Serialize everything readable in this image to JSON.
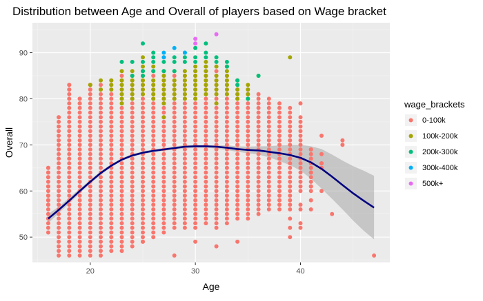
{
  "chart_data": {
    "type": "scatter",
    "title": "Distribution between Age and Overall of players based on Wage bracket",
    "xlabel": "Age",
    "ylabel": "Overall",
    "xlim": [
      14.5,
      48.5
    ],
    "ylim": [
      44.5,
      96.5
    ],
    "x_ticks": [
      20,
      30,
      40
    ],
    "y_ticks": [
      50,
      60,
      70,
      80,
      90
    ],
    "grid": true,
    "legend": {
      "title": "wage_brackets",
      "placement": "right",
      "entries": [
        {
          "label": "0-100k",
          "color": "#F8766D"
        },
        {
          "label": "100k-200k",
          "color": "#A3A500"
        },
        {
          "label": "200k-300k",
          "color": "#00BF7D"
        },
        {
          "label": "300k-400k",
          "color": "#00B0F6"
        },
        {
          "label": "500k+",
          "color": "#E76BF3"
        }
      ]
    },
    "series": [
      {
        "name": "0-100k",
        "color": "#F8766D",
        "column_ranges": [
          {
            "age": 16,
            "min": 51,
            "max": 65
          },
          {
            "age": 17,
            "min": 46,
            "max": 76
          },
          {
            "age": 18,
            "min": 46,
            "max": 83
          },
          {
            "age": 19,
            "min": 46,
            "max": 80
          },
          {
            "age": 20,
            "min": 46,
            "max": 83
          },
          {
            "age": 21,
            "min": 46,
            "max": 83
          },
          {
            "age": 22,
            "min": 47,
            "max": 84
          },
          {
            "age": 23,
            "min": 47,
            "max": 85
          },
          {
            "age": 24,
            "min": 48,
            "max": 85
          },
          {
            "age": 25,
            "min": 49,
            "max": 85
          },
          {
            "age": 26,
            "min": 50,
            "max": 85
          },
          {
            "age": 27,
            "min": 51,
            "max": 85
          },
          {
            "age": 28,
            "min": 52,
            "max": 85
          },
          {
            "age": 29,
            "min": 52,
            "max": 85
          },
          {
            "age": 30,
            "min": 52,
            "max": 86
          },
          {
            "age": 31,
            "min": 53,
            "max": 86
          },
          {
            "age": 32,
            "min": 52,
            "max": 86
          },
          {
            "age": 33,
            "min": 53,
            "max": 85
          },
          {
            "age": 34,
            "min": 54,
            "max": 84
          },
          {
            "age": 35,
            "min": 54,
            "max": 82
          },
          {
            "age": 36,
            "min": 55,
            "max": 81
          },
          {
            "age": 37,
            "min": 56,
            "max": 80
          },
          {
            "age": 38,
            "min": 56,
            "max": 79
          },
          {
            "age": 39,
            "min": 56,
            "max": 78
          },
          {
            "age": 40,
            "min": 60,
            "max": 76
          },
          {
            "age": 41,
            "min": 60,
            "max": 69
          },
          {
            "age": 42,
            "min": 65,
            "max": 66
          }
        ],
        "points": [
          [
            16,
            54
          ],
          [
            16,
            57
          ],
          [
            16,
            58
          ],
          [
            16,
            59
          ],
          [
            16,
            61
          ],
          [
            16,
            63
          ],
          [
            16,
            64
          ],
          [
            16,
            65
          ],
          [
            17,
            76
          ],
          [
            18,
            82
          ],
          [
            18,
            83
          ],
          [
            19,
            79
          ],
          [
            19,
            80
          ],
          [
            20,
            82
          ],
          [
            20,
            83
          ],
          [
            25,
            49
          ],
          [
            28,
            46
          ],
          [
            30,
            49
          ],
          [
            32,
            48
          ],
          [
            34,
            49
          ],
          [
            39,
            50
          ],
          [
            39,
            52
          ],
          [
            39,
            54
          ],
          [
            40,
            52
          ],
          [
            40,
            53
          ],
          [
            40,
            56
          ],
          [
            40,
            57
          ],
          [
            40,
            79
          ],
          [
            41,
            56
          ],
          [
            41,
            58
          ],
          [
            41,
            61
          ],
          [
            41,
            64
          ],
          [
            41,
            69
          ],
          [
            42,
            60
          ],
          [
            42,
            65
          ],
          [
            42,
            66
          ],
          [
            42,
            68
          ],
          [
            42,
            72
          ],
          [
            43,
            55
          ],
          [
            44,
            70
          ],
          [
            44,
            71
          ],
          [
            47,
            46
          ]
        ]
      },
      {
        "name": "100k-200k",
        "color": "#A3A500",
        "points": [
          [
            20,
            83
          ],
          [
            21,
            82
          ],
          [
            21,
            84
          ],
          [
            22,
            82
          ],
          [
            22,
            83
          ],
          [
            22,
            84
          ],
          [
            23,
            79
          ],
          [
            23,
            80
          ],
          [
            23,
            81
          ],
          [
            23,
            82
          ],
          [
            23,
            83
          ],
          [
            23,
            84
          ],
          [
            23,
            86
          ],
          [
            24,
            80
          ],
          [
            24,
            81
          ],
          [
            24,
            82
          ],
          [
            24,
            83
          ],
          [
            24,
            84
          ],
          [
            24,
            85
          ],
          [
            24,
            86
          ],
          [
            25,
            81
          ],
          [
            25,
            82
          ],
          [
            25,
            83
          ],
          [
            25,
            84
          ],
          [
            25,
            85
          ],
          [
            25,
            86
          ],
          [
            25,
            87
          ],
          [
            25,
            89
          ],
          [
            26,
            80
          ],
          [
            26,
            81
          ],
          [
            26,
            82
          ],
          [
            26,
            83
          ],
          [
            26,
            84
          ],
          [
            26,
            86
          ],
          [
            26,
            87
          ],
          [
            27,
            76
          ],
          [
            27,
            79
          ],
          [
            27,
            80
          ],
          [
            27,
            81
          ],
          [
            27,
            82
          ],
          [
            27,
            83
          ],
          [
            27,
            84
          ],
          [
            27,
            85
          ],
          [
            27,
            86
          ],
          [
            28,
            80
          ],
          [
            28,
            81
          ],
          [
            28,
            82
          ],
          [
            28,
            83
          ],
          [
            28,
            84
          ],
          [
            28,
            86
          ],
          [
            29,
            80
          ],
          [
            29,
            81
          ],
          [
            29,
            82
          ],
          [
            29,
            83
          ],
          [
            29,
            84
          ],
          [
            29,
            85
          ],
          [
            29,
            86
          ],
          [
            30,
            80
          ],
          [
            30,
            81
          ],
          [
            30,
            82
          ],
          [
            30,
            83
          ],
          [
            30,
            84
          ],
          [
            30,
            85
          ],
          [
            30,
            86
          ],
          [
            30,
            87
          ],
          [
            31,
            81
          ],
          [
            31,
            82
          ],
          [
            31,
            83
          ],
          [
            31,
            84
          ],
          [
            31,
            85
          ],
          [
            31,
            86
          ],
          [
            31,
            87
          ],
          [
            31,
            88
          ],
          [
            32,
            79
          ],
          [
            32,
            81
          ],
          [
            32,
            82
          ],
          [
            32,
            83
          ],
          [
            32,
            84
          ],
          [
            32,
            85
          ],
          [
            32,
            87
          ],
          [
            33,
            81
          ],
          [
            33,
            82
          ],
          [
            33,
            83
          ],
          [
            33,
            84
          ],
          [
            33,
            85
          ],
          [
            33,
            86
          ],
          [
            33,
            87
          ],
          [
            34,
            80
          ],
          [
            34,
            81
          ],
          [
            34,
            82
          ],
          [
            34,
            84
          ],
          [
            35,
            80
          ],
          [
            35,
            81
          ],
          [
            35,
            82
          ],
          [
            35,
            83
          ],
          [
            36,
            85
          ],
          [
            39,
            89
          ]
        ]
      },
      {
        "name": "200k-300k",
        "color": "#00BF7D",
        "points": [
          [
            23,
            88
          ],
          [
            24,
            85
          ],
          [
            24,
            88
          ],
          [
            25,
            85
          ],
          [
            25,
            86
          ],
          [
            25,
            88
          ],
          [
            25,
            92
          ],
          [
            26,
            86
          ],
          [
            26,
            88
          ],
          [
            26,
            89
          ],
          [
            26,
            90
          ],
          [
            27,
            86
          ],
          [
            27,
            88
          ],
          [
            27,
            89
          ],
          [
            28,
            86
          ],
          [
            28,
            88
          ],
          [
            28,
            89
          ],
          [
            29,
            88
          ],
          [
            29,
            89
          ],
          [
            29,
            90
          ],
          [
            30,
            88
          ],
          [
            30,
            89
          ],
          [
            30,
            91
          ],
          [
            31,
            89
          ],
          [
            31,
            90
          ],
          [
            31,
            92
          ],
          [
            32,
            88
          ],
          [
            32,
            89
          ],
          [
            33,
            88
          ],
          [
            33,
            87
          ],
          [
            34,
            83
          ],
          [
            34,
            84
          ],
          [
            35,
            80
          ],
          [
            36,
            85
          ]
        ]
      },
      {
        "name": "300k-400k",
        "color": "#00B0F6",
        "points": [
          [
            27,
            89
          ],
          [
            27,
            90
          ],
          [
            28,
            91
          ],
          [
            29,
            90
          ]
        ]
      },
      {
        "name": "500k+",
        "color": "#E76BF3",
        "points": [
          [
            30,
            92
          ],
          [
            30,
            93
          ],
          [
            32,
            94
          ]
        ]
      }
    ],
    "smooth": {
      "color": "#000080",
      "band_color": "#999999",
      "x": [
        16,
        17,
        18,
        19,
        20,
        21,
        22,
        23,
        24,
        25,
        26,
        27,
        28,
        29,
        30,
        31,
        32,
        33,
        34,
        35,
        36,
        37,
        38,
        39,
        40,
        41,
        42,
        43,
        44,
        45,
        46,
        47
      ],
      "y": [
        54.0,
        55.9,
        57.9,
        60.0,
        62.0,
        63.9,
        65.5,
        66.8,
        67.7,
        68.3,
        68.7,
        69.0,
        69.3,
        69.6,
        69.7,
        69.7,
        69.6,
        69.4,
        69.1,
        68.9,
        68.8,
        68.5,
        68.2,
        67.8,
        67.2,
        66.2,
        64.8,
        63.1,
        61.3,
        59.5,
        57.9,
        56.4
      ],
      "lo": [
        53.0,
        55.2,
        57.3,
        59.5,
        61.6,
        63.5,
        65.2,
        66.5,
        67.4,
        68.0,
        68.4,
        68.7,
        69.0,
        69.2,
        69.4,
        69.4,
        69.2,
        68.9,
        68.5,
        68.2,
        67.9,
        67.3,
        66.5,
        65.6,
        64.4,
        62.7,
        60.5,
        58.3,
        56.0,
        53.6,
        51.4,
        49.5
      ],
      "hi": [
        55.0,
        56.6,
        58.5,
        60.5,
        62.4,
        64.3,
        65.8,
        67.1,
        68.0,
        68.6,
        69.0,
        69.3,
        69.6,
        70.0,
        70.0,
        70.0,
        70.0,
        69.9,
        69.7,
        69.6,
        69.7,
        69.7,
        69.9,
        70.0,
        70.0,
        69.7,
        69.1,
        67.9,
        66.6,
        65.4,
        64.4,
        63.3
      ]
    }
  }
}
